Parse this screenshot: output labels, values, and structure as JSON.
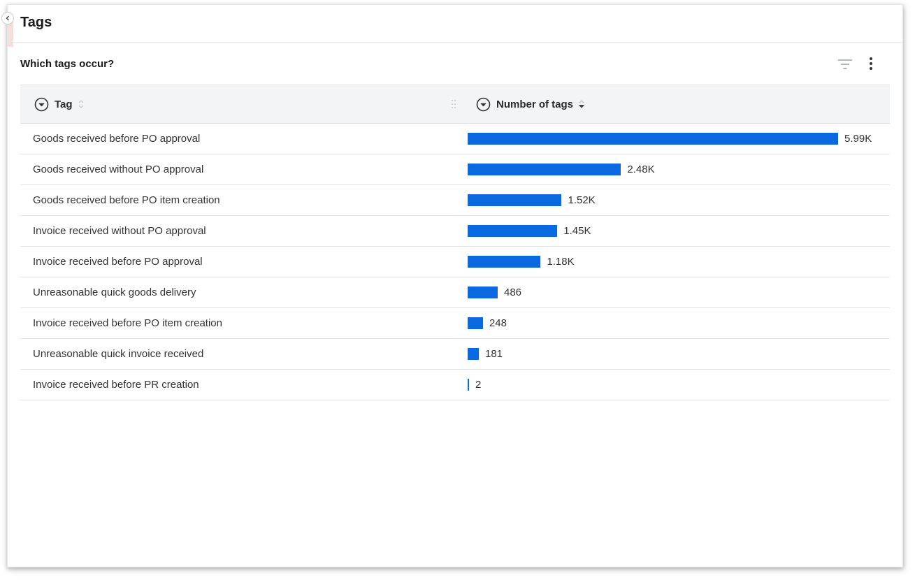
{
  "panel": {
    "title": "Tags",
    "subtitle": "Which tags occur?"
  },
  "icons": {
    "collapse": "chevron-left-icon",
    "filter": "filter-lines-icon",
    "menu": "more-vertical-icon",
    "column_menu": "circle-chevron-down-icon",
    "sort": "sort-icon",
    "drag": "drag-handle-icon"
  },
  "table": {
    "columns": [
      {
        "label": "Tag"
      },
      {
        "label": "Number of tags"
      }
    ]
  },
  "colors": {
    "bar": "#0a68e0"
  },
  "chart_data": {
    "type": "bar",
    "orientation": "horizontal",
    "categories": [
      "Goods received before PO approval",
      "Goods received without PO approval",
      "Goods received before PO item creation",
      "Invoice received without PO approval",
      "Invoice received before PO approval",
      "Unreasonable quick goods delivery",
      "Invoice received before PO item creation",
      "Unreasonable quick invoice received",
      "Invoice received before PR creation"
    ],
    "values": [
      5990,
      2480,
      1520,
      1450,
      1180,
      486,
      248,
      181,
      2
    ],
    "value_labels": [
      "5.99K",
      "2.48K",
      "1.52K",
      "1.45K",
      "1.18K",
      "486",
      "248",
      "181",
      "2"
    ],
    "xlabel": "Number of tags",
    "ylabel": "Tag"
  }
}
